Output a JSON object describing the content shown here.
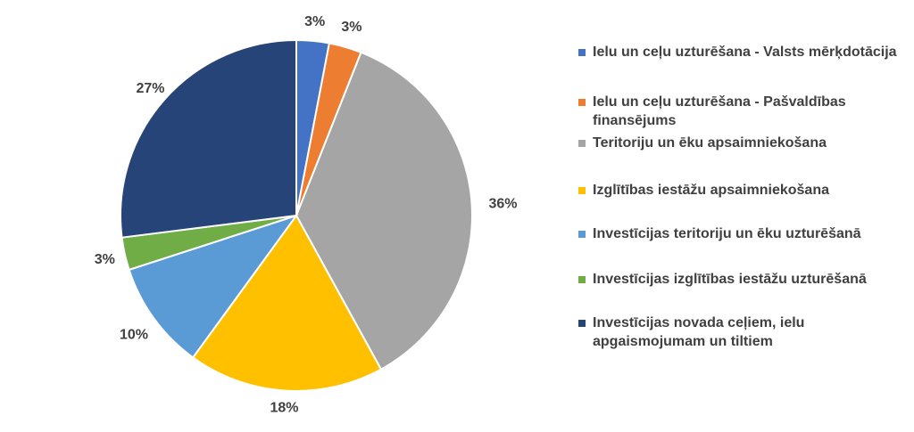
{
  "chart_data": {
    "type": "pie",
    "title": "",
    "slices": [
      {
        "label": "Ielu un ceļu uzturēšana - Valsts mērķdotācija",
        "value": 3,
        "value_label": "3%",
        "color": "#4472C4"
      },
      {
        "label": "Ielu un ceļu uzturēšana - Pašvaldības finansējums",
        "value": 3,
        "value_label": "3%",
        "color": "#ED7D31"
      },
      {
        "label": "Teritoriju un ēku apsaimniekošana",
        "value": 36,
        "value_label": "36%",
        "color": "#A5A5A5"
      },
      {
        "label": "Izglītības iestāžu apsaimniekošana",
        "value": 18,
        "value_label": "18%",
        "color": "#FFC000"
      },
      {
        "label": "Investīcijas teritoriju un ēku uzturēšanā",
        "value": 10,
        "value_label": "10%",
        "color": "#5B9BD5"
      },
      {
        "label": "Investīcijas izglītības iestāžu uzturēšanā",
        "value": 3,
        "value_label": "3%",
        "color": "#70AD47"
      },
      {
        "label": "Investīcijas novada ceļiem, ielu apgaismojumam un tiltiem",
        "value": 27,
        "value_label": "27%",
        "color": "#264478"
      }
    ],
    "legend_position": "right"
  }
}
